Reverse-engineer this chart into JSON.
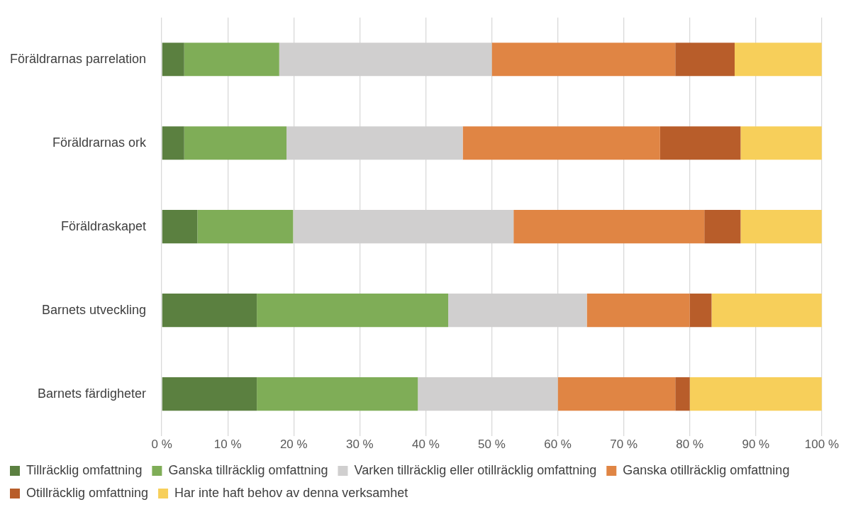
{
  "chart_data": {
    "type": "bar",
    "orientation": "horizontal",
    "stacked": true,
    "categories": [
      "Föräldrarnas parrelation",
      "Föräldrarnas ork",
      "Föräldraskapet",
      "Barnets utveckling",
      "Barnets färdigheter"
    ],
    "series": [
      {
        "name": "Tillräcklig omfattning",
        "color": "#5b8040",
        "values": [
          3.4,
          3.4,
          5.4,
          14.4,
          14.4
        ]
      },
      {
        "name": "Ganska tillräcklig omfattning",
        "color": "#7fad57",
        "values": [
          14.4,
          15.5,
          14.5,
          29.0,
          24.4
        ]
      },
      {
        "name": "Varken tillräcklig eller otillräcklig omfattning",
        "color": "#d0cfcf",
        "values": [
          32.2,
          26.7,
          33.4,
          21.0,
          21.2
        ]
      },
      {
        "name": "Ganska otillräcklig omfattning",
        "color": "#e08544",
        "values": [
          27.8,
          29.9,
          28.9,
          15.6,
          17.8
        ]
      },
      {
        "name": "Otillräcklig omfattning",
        "color": "#b85d2a",
        "values": [
          9.0,
          12.2,
          5.5,
          3.3,
          2.2
        ]
      },
      {
        "name": "Har inte haft behov av denna verksamhet",
        "color": "#f7cf5a",
        "values": [
          13.2,
          12.3,
          12.3,
          16.7,
          20.0
        ]
      }
    ],
    "xlim": [
      0,
      100
    ],
    "xticks": [
      {
        "value": 0,
        "label": "0 %"
      },
      {
        "value": 10,
        "label": "10 %"
      },
      {
        "value": 20,
        "label": "20 %"
      },
      {
        "value": 30,
        "label": "30 %"
      },
      {
        "value": 40,
        "label": "40 %"
      },
      {
        "value": 50,
        "label": "50 %"
      },
      {
        "value": 60,
        "label": "60 %"
      },
      {
        "value": 70,
        "label": "70 %"
      },
      {
        "value": 80,
        "label": "80 %"
      },
      {
        "value": 90,
        "label": "90 %"
      },
      {
        "value": 100,
        "label": "100 %"
      }
    ],
    "grid": "x",
    "legend": "bottom"
  }
}
